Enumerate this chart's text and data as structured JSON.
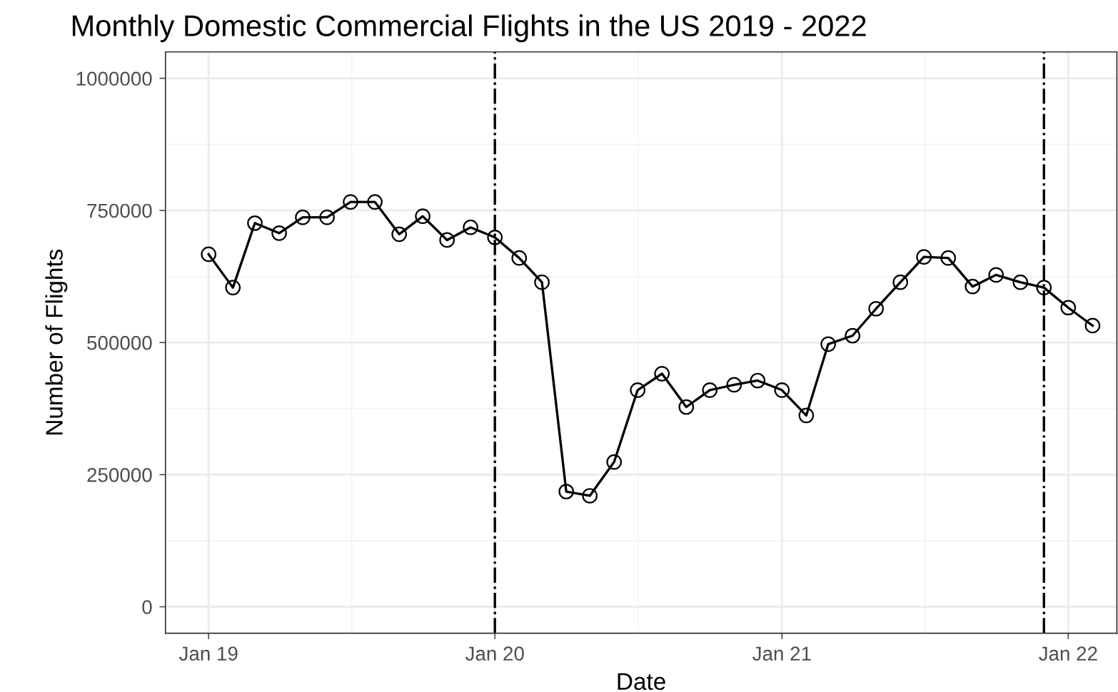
{
  "chart_data": {
    "type": "line",
    "title": "Monthly Domestic Commercial Flights in the US 2019 - 2022",
    "xlabel": "Date",
    "ylabel": "Number of Flights",
    "x": [
      "2019-01",
      "2019-02",
      "2019-03",
      "2019-04",
      "2019-05",
      "2019-06",
      "2019-07",
      "2019-08",
      "2019-09",
      "2019-10",
      "2019-11",
      "2019-12",
      "2020-01",
      "2020-02",
      "2020-03",
      "2020-04",
      "2020-05",
      "2020-06",
      "2020-07",
      "2020-08",
      "2020-09",
      "2020-10",
      "2020-11",
      "2020-12",
      "2021-01",
      "2021-02",
      "2021-03",
      "2021-04",
      "2021-05",
      "2021-06",
      "2021-07",
      "2021-08",
      "2021-09",
      "2021-10",
      "2021-11",
      "2021-12",
      "2022-01",
      "2022-02"
    ],
    "series": [
      {
        "color": "#000000",
        "values": [
          667000,
          604000,
          726000,
          707000,
          737000,
          737000,
          766000,
          766000,
          705000,
          739000,
          694000,
          718000,
          699000,
          660000,
          614000,
          218000,
          210000,
          274000,
          410000,
          441000,
          378000,
          410000,
          420000,
          428000,
          410000,
          362000,
          497000,
          513000,
          564000,
          614000,
          662000,
          660000,
          606000,
          628000,
          614000,
          604000,
          566000,
          532000
        ]
      }
    ],
    "marker": "circle",
    "line_style": "solid",
    "grid": true,
    "xlim": [
      "2018-11-07",
      "2022-03-04"
    ],
    "xticks": [
      {
        "value": "2019-01-01",
        "label": "Jan 19"
      },
      {
        "value": "2020-01-01",
        "label": "Jan 20"
      },
      {
        "value": "2021-01-01",
        "label": "Jan 21"
      },
      {
        "value": "2022-01-01",
        "label": "Jan 22"
      }
    ],
    "ylim": [
      -50000,
      1050000
    ],
    "yticks": [
      0,
      250000,
      500000,
      750000,
      1000000
    ],
    "ref_lines": [
      {
        "axis": "x",
        "value": "2020-01-01",
        "label": null,
        "color": "#000000",
        "line_style": "dashdot"
      },
      {
        "axis": "x",
        "value": "2021-12-01",
        "label": null,
        "color": "#000000",
        "line_style": "dashdot"
      }
    ]
  }
}
